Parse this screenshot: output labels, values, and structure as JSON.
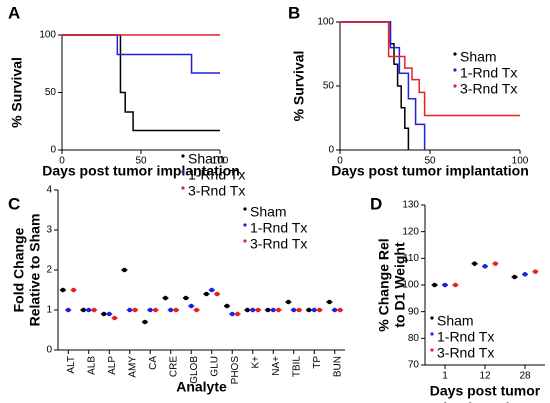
{
  "chart_data": [
    {
      "type": "step",
      "title": "A",
      "ylabel": [
        "% Survival"
      ],
      "xlabel": [
        "Days post tumor implantation"
      ],
      "xlim": [
        0,
        100
      ],
      "xticks": [
        0,
        50,
        100
      ],
      "ylim": [
        0,
        100
      ],
      "yticks": [
        0,
        50,
        100
      ],
      "series": [
        {
          "name": "Sham",
          "color": "#000000",
          "x": [
            0,
            37,
            40,
            45,
            100
          ],
          "values": [
            100,
            50,
            33,
            17,
            17
          ]
        },
        {
          "name": "1-Rnd Tx",
          "color": "#2020e0",
          "x": [
            0,
            35,
            82,
            100
          ],
          "values": [
            100,
            83,
            67,
            67
          ]
        },
        {
          "name": "3-Rnd Tx",
          "color": "#e82020",
          "x": [
            0,
            100
          ],
          "values": [
            100,
            100
          ]
        }
      ]
    },
    {
      "type": "step",
      "title": "B",
      "ylabel": [
        "% Survival"
      ],
      "xlabel": [
        "Days post tumor implantation"
      ],
      "xlim": [
        0,
        100
      ],
      "xticks": [
        0,
        50,
        100
      ],
      "ylim": [
        0,
        100
      ],
      "yticks": [
        0,
        50,
        100
      ],
      "series": [
        {
          "name": "Sham",
          "color": "#000000",
          "x": [
            0,
            28,
            30,
            32,
            34,
            36,
            38
          ],
          "values": [
            100,
            83,
            67,
            50,
            33,
            17,
            0
          ]
        },
        {
          "name": "1-Rnd Tx",
          "color": "#2020e0",
          "x": [
            0,
            28,
            33,
            38,
            42,
            47
          ],
          "values": [
            100,
            80,
            60,
            40,
            20,
            0
          ]
        },
        {
          "name": "3-Rnd Tx",
          "color": "#e82020",
          "x": [
            0,
            27,
            36,
            40,
            44,
            47,
            100
          ],
          "values": [
            100,
            73,
            64,
            55,
            45,
            27,
            27
          ]
        }
      ]
    },
    {
      "type": "dot",
      "title": "C",
      "ylabel": [
        "Fold Change",
        "Relative to Sham"
      ],
      "xlabel": [
        "Analyte"
      ],
      "categories": [
        "ALT",
        "ALB",
        "ALP",
        "AMY",
        "CA",
        "CRE",
        "GLOB",
        "GLU",
        "PHOS",
        "K+",
        "NA+",
        "TBIL",
        "TP",
        "BUN"
      ],
      "ylim": [
        0,
        4
      ],
      "yticks": [
        0,
        1,
        2,
        3,
        4
      ],
      "series": [
        {
          "name": "Sham",
          "color": "#000000",
          "values": [
            1.5,
            1.0,
            0.9,
            2.0,
            0.7,
            1.3,
            1.3,
            1.4,
            1.1,
            1.0,
            1.0,
            1.2,
            1.0,
            1.2
          ]
        },
        {
          "name": "1-Rnd Tx",
          "color": "#2020e0",
          "values": [
            1.0,
            1.0,
            0.9,
            1.0,
            1.0,
            1.0,
            1.1,
            1.5,
            0.9,
            1.0,
            1.0,
            1.0,
            1.0,
            1.0
          ]
        },
        {
          "name": "3-Rnd Tx",
          "color": "#e82020",
          "values": [
            1.5,
            1.0,
            0.8,
            1.0,
            1.0,
            1.0,
            1.0,
            1.4,
            0.9,
            1.0,
            1.0,
            1.0,
            1.0,
            1.0
          ]
        }
      ]
    },
    {
      "type": "dot",
      "title": "D",
      "ylabel": [
        "% Change Rel",
        "to D1 Weight"
      ],
      "xlabel": [
        "Days post tumor",
        "implantation"
      ],
      "categories": [
        "1",
        "12",
        "28"
      ],
      "ylim": [
        70,
        130
      ],
      "yticks": [
        70,
        80,
        90,
        100,
        110,
        120,
        130
      ],
      "series": [
        {
          "name": "Sham",
          "color": "#000000",
          "values": [
            100,
            108,
            103
          ]
        },
        {
          "name": "1-Rnd Tx",
          "color": "#2020e0",
          "values": [
            100,
            107,
            104
          ]
        },
        {
          "name": "3-Rnd Tx",
          "color": "#e82020",
          "values": [
            100,
            108,
            105
          ]
        }
      ]
    }
  ]
}
